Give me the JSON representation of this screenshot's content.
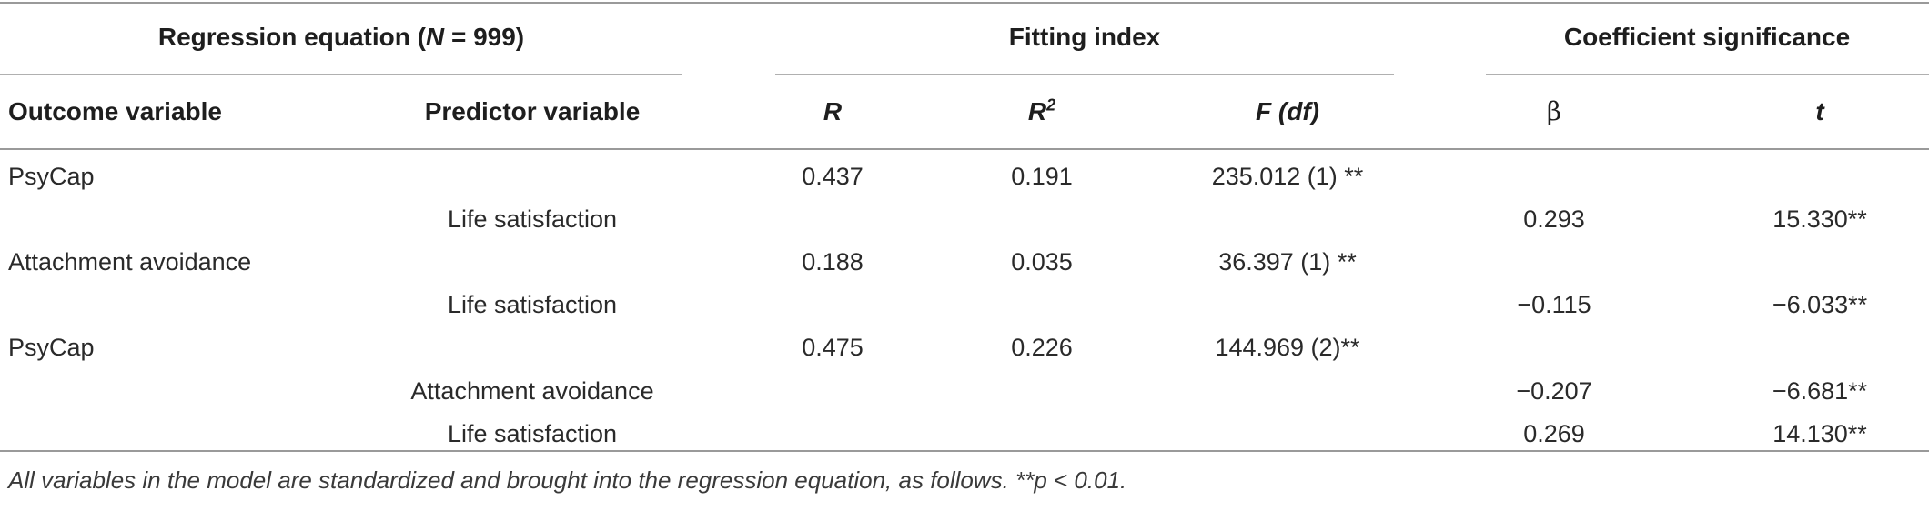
{
  "table": {
    "group_headers": {
      "regression": {
        "prefix": "Regression equation (",
        "n": "N",
        "suffix": " = 999)"
      },
      "fitting": "Fitting index",
      "coefficient": "Coefficient significance"
    },
    "columns": {
      "outcome": "Outcome variable",
      "predictor": "Predictor variable",
      "r": "R",
      "r2_base": "R",
      "r2_sup": "2",
      "f": "F (df)",
      "beta": "β",
      "t": "t"
    },
    "rows": [
      {
        "outcome": "PsyCap",
        "predictor": "",
        "r": "0.437",
        "r2": "0.191",
        "f": "235.012 (1) **",
        "beta": "",
        "t": ""
      },
      {
        "outcome": "",
        "predictor": "Life satisfaction",
        "r": "",
        "r2": "",
        "f": "",
        "beta": "0.293",
        "t": "15.330**"
      },
      {
        "outcome": "Attachment avoidance",
        "predictor": "",
        "r": "0.188",
        "r2": "0.035",
        "f": "36.397 (1) **",
        "beta": "",
        "t": ""
      },
      {
        "outcome": "",
        "predictor": "Life satisfaction",
        "r": "",
        "r2": "",
        "f": "",
        "beta": "−0.115",
        "t": "−6.033**"
      },
      {
        "outcome": "PsyCap",
        "predictor": "",
        "r": "0.475",
        "r2": "0.226",
        "f": "144.969 (2)**",
        "beta": "",
        "t": ""
      },
      {
        "outcome": "",
        "predictor": "Attachment avoidance",
        "r": "",
        "r2": "",
        "f": "",
        "beta": "−0.207",
        "t": "−6.681**"
      },
      {
        "outcome": "",
        "predictor": "Life satisfaction",
        "r": "",
        "r2": "",
        "f": "",
        "beta": "0.269",
        "t": "14.130**"
      }
    ],
    "note": "All variables in the model are standardized and brought into the regression equation, as follows. **p < 0.01."
  }
}
